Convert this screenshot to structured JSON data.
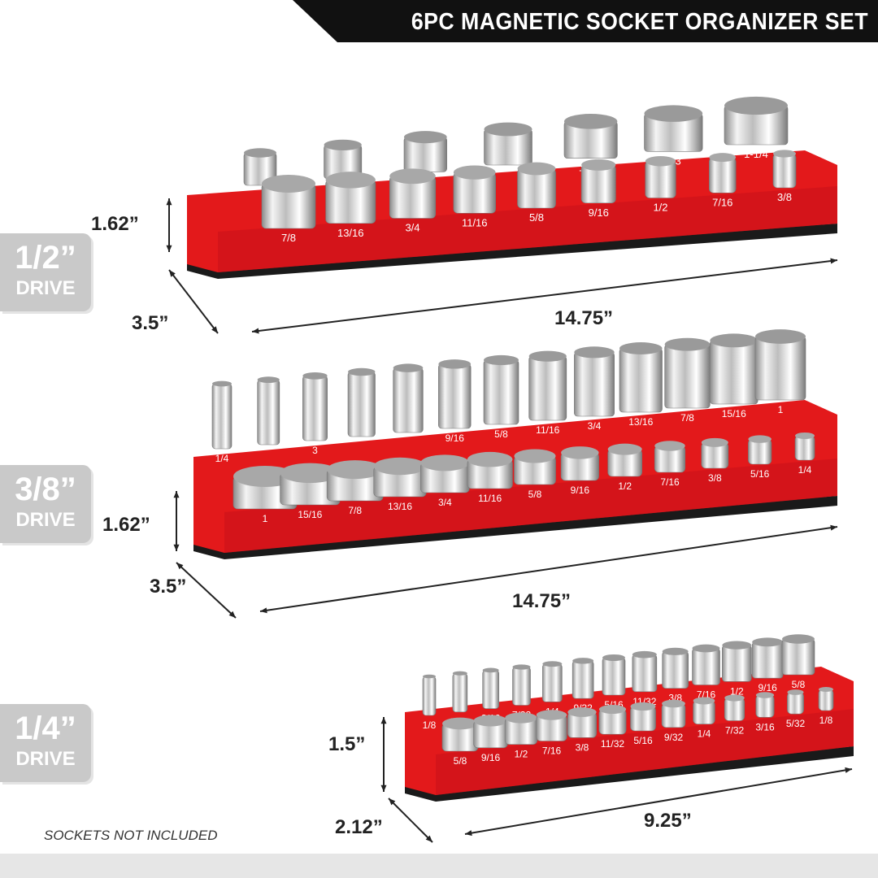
{
  "title": "6PC MAGNETIC SOCKET ORGANIZER SET",
  "note": "SOCKETS NOT INCLUDED",
  "colors": {
    "tray_red": "#e3191b",
    "tray_base": "#1a1a1a",
    "badge": "#c9c9c9",
    "banner": "#111111"
  },
  "trays": [
    {
      "drive": {
        "size": "1/2”",
        "label": "DRIVE"
      },
      "height": "1.62”",
      "depth": "3.5”",
      "length": "14.75”",
      "front_row": [
        "7/8",
        "13/16",
        "3/4",
        "11/16",
        "5/8",
        "9/16",
        "1/2",
        "7/16",
        "3/8"
      ],
      "back_row": [
        "",
        "",
        "",
        "",
        "1-1/8",
        "1-3",
        "1-1/4"
      ]
    },
    {
      "drive": {
        "size": "3/8”",
        "label": "DRIVE"
      },
      "height": "1.62”",
      "depth": "3.5”",
      "length": "14.75”",
      "front_row": [
        "1",
        "15/16",
        "7/8",
        "13/16",
        "3/4",
        "11/16",
        "5/8",
        "9/16",
        "1/2",
        "7/16",
        "3/8",
        "5/16",
        "1/4"
      ],
      "back_row": [
        "1/4",
        "",
        "3",
        "",
        "",
        "9/16",
        "5/8",
        "11/16",
        "3/4",
        "13/16",
        "7/8",
        "15/16",
        "1"
      ]
    },
    {
      "drive": {
        "size": "1/4”",
        "label": "DRIVE"
      },
      "height": "1.5”",
      "depth": "2.12”",
      "length": "9.25”",
      "front_row": [
        "5/8",
        "9/16",
        "1/2",
        "7/16",
        "3/8",
        "11/32",
        "5/16",
        "9/32",
        "1/4",
        "7/32",
        "3/16",
        "5/32",
        "1/8"
      ],
      "back_row": [
        "1/8",
        "5/32",
        "3/16",
        "7/32",
        "1/4",
        "9/32",
        "5/16",
        "11/32",
        "3/8",
        "7/16",
        "1/2",
        "9/16",
        "5/8"
      ]
    }
  ]
}
